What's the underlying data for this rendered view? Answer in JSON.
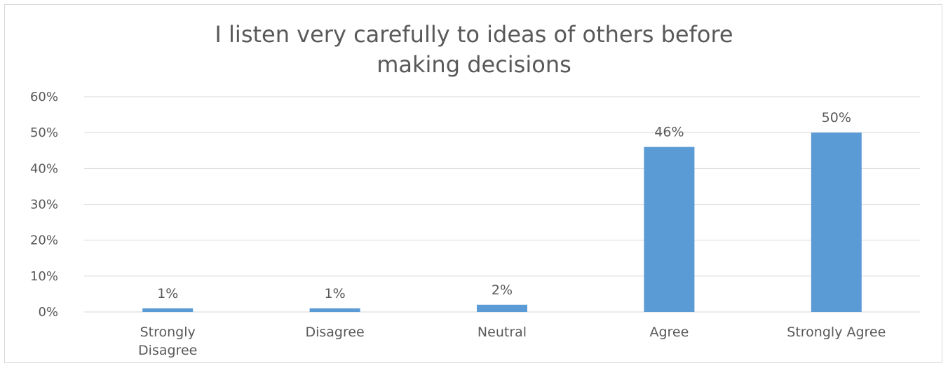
{
  "chart_data": {
    "type": "bar",
    "title_lines": [
      "I listen very carefully to ideas of others before",
      "making decisions"
    ],
    "categories": [
      [
        "Strongly",
        "Disagree"
      ],
      [
        "Disagree"
      ],
      [
        "Neutral"
      ],
      [
        "Agree"
      ],
      [
        "Strongly Agree"
      ]
    ],
    "values": [
      1,
      1,
      2,
      46,
      50
    ],
    "data_labels": [
      "1%",
      "1%",
      "2%",
      "46%",
      "50%"
    ],
    "y_ticks": [
      "0%",
      "10%",
      "20%",
      "30%",
      "40%",
      "50%",
      "60%"
    ],
    "ylim": [
      0,
      60
    ],
    "grid": true,
    "legend": "none",
    "bar_color": "#5b9bd5",
    "grid_color": "#d9d9d9",
    "text_color": "#595959"
  }
}
